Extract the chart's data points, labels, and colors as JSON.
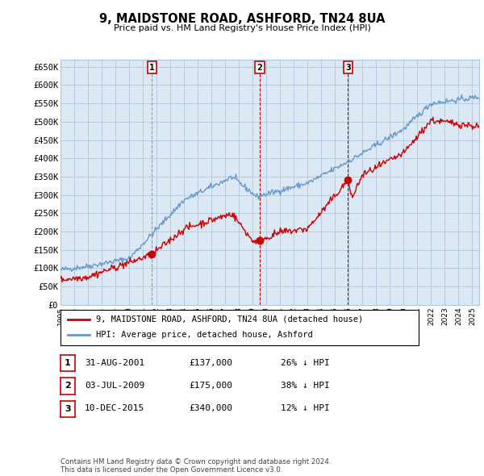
{
  "title": "9, MAIDSTONE ROAD, ASHFORD, TN24 8UA",
  "subtitle": "Price paid vs. HM Land Registry's House Price Index (HPI)",
  "ylabel_ticks": [
    "£0",
    "£50K",
    "£100K",
    "£150K",
    "£200K",
    "£250K",
    "£300K",
    "£350K",
    "£400K",
    "£450K",
    "£500K",
    "£550K",
    "£600K",
    "£650K"
  ],
  "ytick_values": [
    0,
    50000,
    100000,
    150000,
    200000,
    250000,
    300000,
    350000,
    400000,
    450000,
    500000,
    550000,
    600000,
    650000
  ],
  "xlim_start": 1995.0,
  "xlim_end": 2025.5,
  "ylim_min": 0,
  "ylim_max": 670000,
  "background_color": "#ffffff",
  "chart_bg_color": "#dce9f5",
  "grid_color": "#adc6e0",
  "purchases": [
    {
      "date_num": 2001.67,
      "price": 137000,
      "label": "1",
      "vline_style": "dashed_gray"
    },
    {
      "date_num": 2009.5,
      "price": 175000,
      "label": "2",
      "vline_style": "dashed_red"
    },
    {
      "date_num": 2015.95,
      "price": 340000,
      "label": "3",
      "vline_style": "dashed_red"
    }
  ],
  "legend_entries": [
    {
      "color": "#cc0000",
      "label": "9, MAIDSTONE ROAD, ASHFORD, TN24 8UA (detached house)"
    },
    {
      "color": "#6699cc",
      "label": "HPI: Average price, detached house, Ashford"
    }
  ],
  "table_rows": [
    {
      "num": "1",
      "date": "31-AUG-2001",
      "price": "£137,000",
      "hpi": "26% ↓ HPI"
    },
    {
      "num": "2",
      "date": "03-JUL-2009",
      "price": "£175,000",
      "hpi": "38% ↓ HPI"
    },
    {
      "num": "3",
      "date": "10-DEC-2015",
      "price": "£340,000",
      "hpi": "12% ↓ HPI"
    }
  ],
  "footer": "Contains HM Land Registry data © Crown copyright and database right 2024.\nThis data is licensed under the Open Government Licence v3.0.",
  "line_color_red": "#cc0000",
  "line_color_blue": "#6699cc",
  "vline_color_gray": "#999999",
  "vline_color_red": "#cc0000"
}
